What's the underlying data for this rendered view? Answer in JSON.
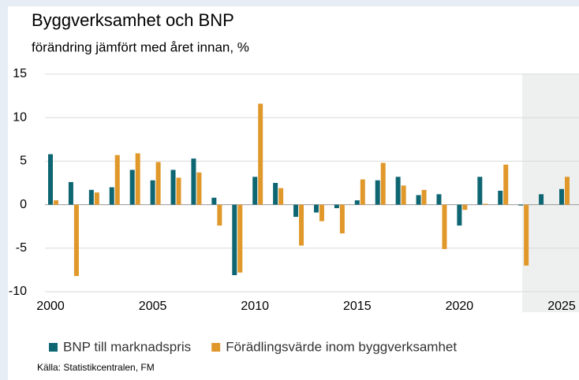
{
  "chart_data": {
    "type": "bar",
    "title": "Byggverksamhet och BNP",
    "subtitle": "förändring jämfört med året innan, %",
    "source": "Källa: Statistikcentralen, FM",
    "categories": [
      2000,
      null,
      null,
      null,
      null,
      2005,
      null,
      null,
      null,
      null,
      2010,
      null,
      null,
      null,
      null,
      2015,
      null,
      null,
      null,
      null,
      2020,
      null,
      null,
      null,
      null,
      2025
    ],
    "series": [
      {
        "name": "BNP till marknadspris",
        "color": "#0f6673",
        "values": [
          5.8,
          2.6,
          1.7,
          2.0,
          4.0,
          2.8,
          4.0,
          5.3,
          0.8,
          -8.1,
          3.2,
          2.5,
          -1.4,
          -0.9,
          -0.4,
          0.5,
          2.8,
          3.2,
          1.1,
          1.2,
          -2.4,
          3.2,
          1.6,
          -0.1,
          1.2,
          1.8
        ]
      },
      {
        "name": "Förädlingsvärde inom byggverksamhet",
        "color": "#e0982b",
        "values": [
          0.5,
          -8.2,
          1.4,
          5.7,
          5.9,
          4.9,
          3.1,
          3.7,
          -2.4,
          -7.8,
          11.6,
          1.9,
          -4.7,
          -1.9,
          -3.3,
          2.9,
          4.8,
          2.2,
          1.7,
          -5.1,
          -0.6,
          0.1,
          4.6,
          -7.0,
          0.0,
          3.2
        ]
      }
    ],
    "ylim": [
      -10,
      15
    ],
    "yticks": [
      -10,
      -5,
      0,
      5,
      10,
      15
    ],
    "grid": true,
    "legend": "bottom"
  }
}
